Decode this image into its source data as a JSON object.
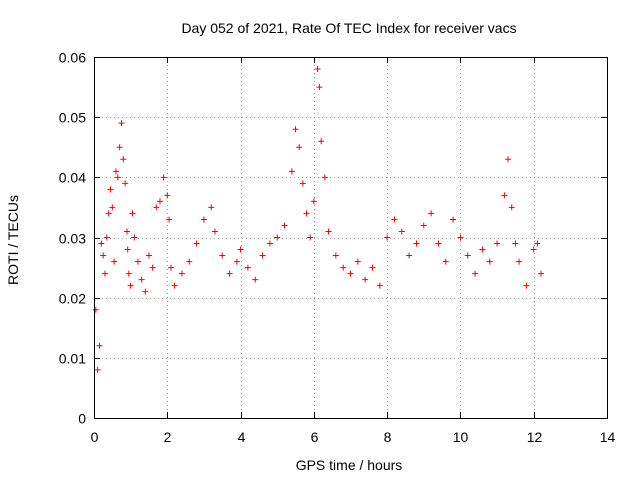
{
  "chart_data": {
    "type": "scatter",
    "title": "Day 052 of 2021, Rate Of TEC Index for receiver vacs",
    "xlabel": "GPS time / hours",
    "ylabel": "ROTI / TECUs",
    "xlim": [
      0,
      14
    ],
    "ylim": [
      0,
      0.06
    ],
    "x_ticks": [
      0,
      2,
      4,
      6,
      8,
      10,
      12,
      14
    ],
    "x_tick_labels": [
      "0",
      "2",
      "4",
      "6",
      "8",
      "10",
      "12",
      "14"
    ],
    "y_ticks": [
      0,
      0.01,
      0.02,
      0.03,
      0.04,
      0.05,
      0.06
    ],
    "y_tick_labels": [
      "0",
      "0.01",
      "0.02",
      "0.03",
      "0.04",
      "0.05",
      "0.06"
    ],
    "grid": true,
    "legend": "none",
    "marker": "+",
    "color": "#ff0000",
    "series": [
      {
        "x": [
          0.05,
          0.1,
          0.15,
          0.2,
          0.25,
          0.3,
          0.35,
          0.4,
          0.45,
          0.5,
          0.55,
          0.6,
          0.65,
          0.7,
          0.75,
          0.8,
          0.85,
          0.9,
          0.92,
          0.95,
          1.0,
          1.05,
          1.1,
          1.2,
          1.3,
          1.4,
          1.5,
          1.6,
          1.7,
          1.8,
          1.9,
          2.0,
          2.05,
          2.1,
          2.2,
          2.4,
          2.6,
          2.8,
          3.0,
          3.2,
          3.3,
          3.5,
          3.7,
          3.9,
          4.0,
          4.2,
          4.4,
          4.6,
          4.8,
          5.0,
          5.2,
          5.4,
          5.5,
          5.6,
          5.7,
          5.8,
          5.9,
          6.0,
          6.1,
          6.15,
          6.2,
          6.3,
          6.4,
          6.6,
          6.8,
          7.0,
          7.2,
          7.4,
          7.6,
          7.8,
          8.0,
          8.2,
          8.4,
          8.6,
          8.8,
          9.0,
          9.2,
          9.4,
          9.6,
          9.8,
          10.0,
          10.2,
          10.4,
          10.6,
          10.8,
          11.0,
          11.2,
          11.3,
          11.4,
          11.5,
          11.6,
          11.8,
          12.0,
          12.1,
          12.2
        ],
        "y": [
          0.018,
          0.008,
          0.012,
          0.029,
          0.027,
          0.024,
          0.03,
          0.034,
          0.038,
          0.035,
          0.026,
          0.041,
          0.04,
          0.045,
          0.049,
          0.043,
          0.039,
          0.031,
          0.028,
          0.024,
          0.022,
          0.034,
          0.03,
          0.026,
          0.023,
          0.021,
          0.027,
          0.025,
          0.035,
          0.036,
          0.04,
          0.037,
          0.033,
          0.025,
          0.022,
          0.024,
          0.026,
          0.029,
          0.033,
          0.035,
          0.031,
          0.027,
          0.024,
          0.026,
          0.028,
          0.025,
          0.023,
          0.027,
          0.029,
          0.03,
          0.032,
          0.041,
          0.048,
          0.045,
          0.039,
          0.034,
          0.03,
          0.036,
          0.058,
          0.055,
          0.046,
          0.04,
          0.031,
          0.027,
          0.025,
          0.024,
          0.026,
          0.023,
          0.025,
          0.022,
          0.03,
          0.033,
          0.031,
          0.027,
          0.029,
          0.032,
          0.034,
          0.029,
          0.026,
          0.033,
          0.03,
          0.027,
          0.024,
          0.028,
          0.026,
          0.029,
          0.037,
          0.043,
          0.035,
          0.029,
          0.026,
          0.022,
          0.028,
          0.029,
          0.024
        ]
      }
    ]
  }
}
